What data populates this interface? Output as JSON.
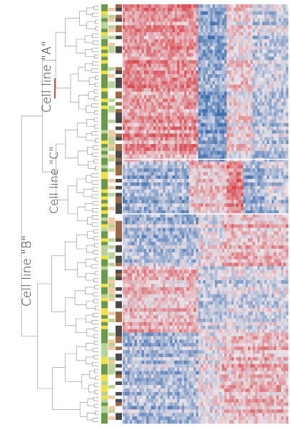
{
  "chart_data": {
    "type": "heatmap",
    "title": "",
    "xlabel": "",
    "ylabel": "",
    "clusters": [
      {
        "label": "Cell line \"A\"",
        "row_fraction": [
          0.0,
          0.37
        ]
      },
      {
        "label": "Cell line \"C\"",
        "row_fraction": [
          0.37,
          0.5
        ]
      },
      {
        "label": "Cell line \"B\"",
        "row_fraction": [
          0.5,
          1.0
        ]
      }
    ],
    "n_rows": 120,
    "n_cols": 70,
    "color_scale": {
      "low": "#3b6db0",
      "mid": "#e9e4ea",
      "high": "#d94a4f"
    },
    "annotation_colors": [
      "#6b9a4e",
      "#b8d49a",
      "#f1c9a6",
      "#4a4a4a",
      "#f2e04b",
      "#ffffff",
      "#9b6a4a"
    ],
    "dendrogram": true
  }
}
